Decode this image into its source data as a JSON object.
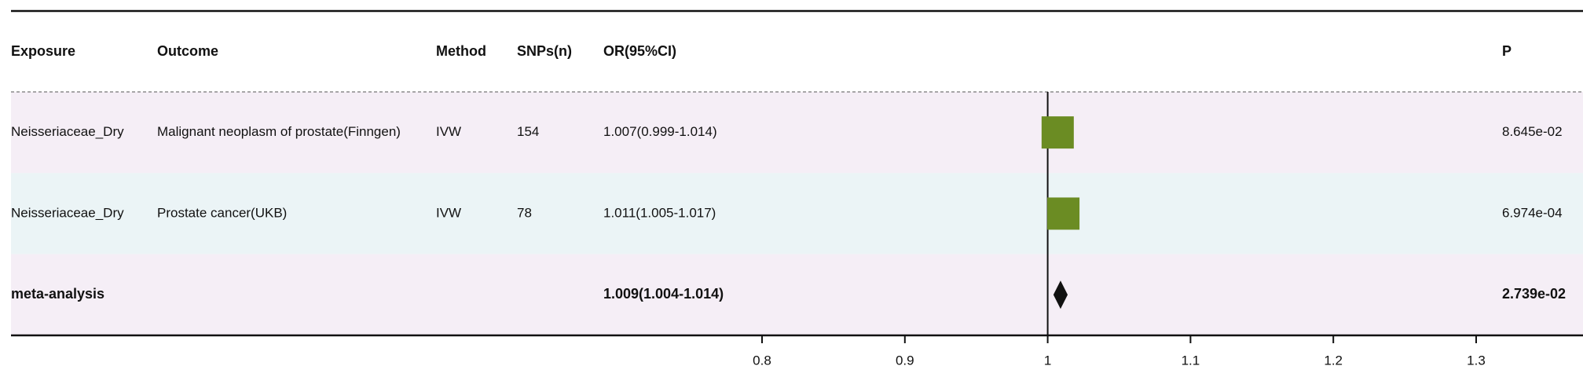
{
  "chart_data": {
    "type": "forest",
    "columns": {
      "exposure": "Exposure",
      "outcome": "Outcome",
      "method": "Method",
      "snps": "SNPs(n)",
      "or": "OR(95%CI)",
      "p": "P"
    },
    "rows": [
      {
        "exposure": "Neisseriaceae_Dry",
        "outcome": "Malignant neoplasm of prostate(Finngen)",
        "method": "IVW",
        "snps": 154,
        "estimate": 1.007,
        "lower": 0.999,
        "upper": 1.014,
        "or_label": "1.007(0.999-1.014)",
        "p": "8.645e-02",
        "marker": "box",
        "band_color": "#f5eef6"
      },
      {
        "exposure": "Neisseriaceae_Dry",
        "outcome": "Prostate cancer(UKB)",
        "method": "IVW",
        "snps": 78,
        "estimate": 1.011,
        "lower": 1.005,
        "upper": 1.017,
        "or_label": "1.011(1.005-1.017)",
        "p": "6.974e-04",
        "marker": "box",
        "band_color": "#ebf4f6"
      },
      {
        "exposure": "meta-analysis",
        "estimate": 1.009,
        "lower": 1.004,
        "upper": 1.014,
        "or_label": "1.009(1.004-1.014)",
        "p": "2.739e-02",
        "marker": "diamond",
        "band_color": "#f5eef6"
      }
    ],
    "box_color": "#6b8c23",
    "diamond_color": "#111111",
    "ref_line": 1,
    "xlim": [
      0.8,
      1.3
    ],
    "xticks": [
      0.8,
      0.9,
      1,
      1.1,
      1.2,
      1.3
    ]
  }
}
